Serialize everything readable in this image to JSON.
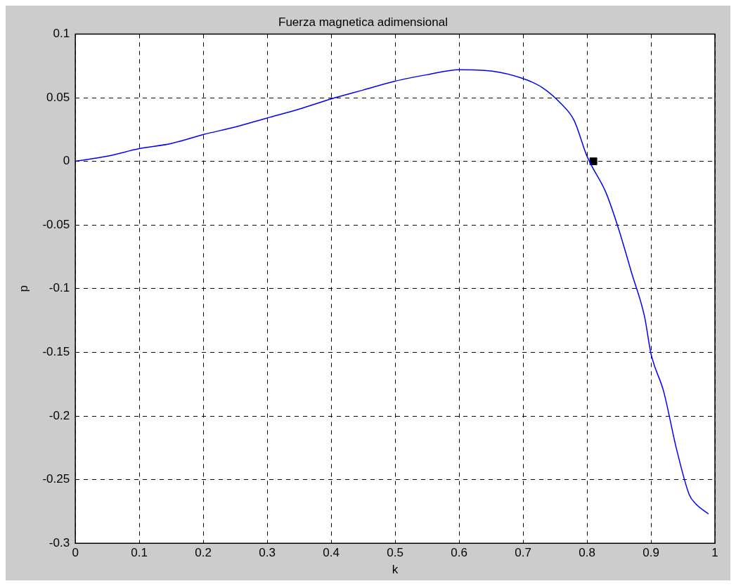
{
  "chart_data": {
    "type": "line",
    "title": "Fuerza magnetica adimensional",
    "xlabel": "k",
    "ylabel": "p",
    "xlim": [
      0,
      1
    ],
    "xticks": [
      0,
      0.1,
      0.2,
      0.3,
      0.4,
      0.5,
      0.6,
      0.7,
      0.8,
      0.9,
      1
    ],
    "ylim": [
      -0.3,
      0.1
    ],
    "yticks": [
      -0.3,
      -0.25,
      -0.2,
      -0.15,
      -0.1,
      -0.05,
      0,
      0.05,
      0.1
    ],
    "grid": true,
    "legend": false,
    "line_style": "solid",
    "series": [
      {
        "color": "#0000ff",
        "marker": "none",
        "x": [
          0,
          0.05,
          0.1,
          0.15,
          0.2,
          0.25,
          0.3,
          0.35,
          0.4,
          0.45,
          0.5,
          0.55,
          0.6,
          0.65,
          0.7,
          0.73,
          0.76,
          0.78,
          0.8,
          0.83,
          0.85,
          0.87,
          0.89,
          0.9,
          0.92,
          0.94,
          0.96,
          0.97,
          0.99
        ],
        "values": [
          0,
          0.004,
          0.01,
          0.014,
          0.021,
          0.027,
          0.034,
          0.041,
          0.049,
          0.056,
          0.063,
          0.068,
          0.072,
          0.071,
          0.065,
          0.058,
          0.045,
          0.032,
          0.004,
          -0.025,
          -0.054,
          -0.088,
          -0.122,
          -0.151,
          -0.181,
          -0.226,
          -0.262,
          -0.269,
          -0.277
        ]
      },
      {
        "type": "scatter",
        "color": "#000000",
        "marker": "square",
        "x": [
          0.81
        ],
        "values": [
          0
        ]
      }
    ]
  }
}
